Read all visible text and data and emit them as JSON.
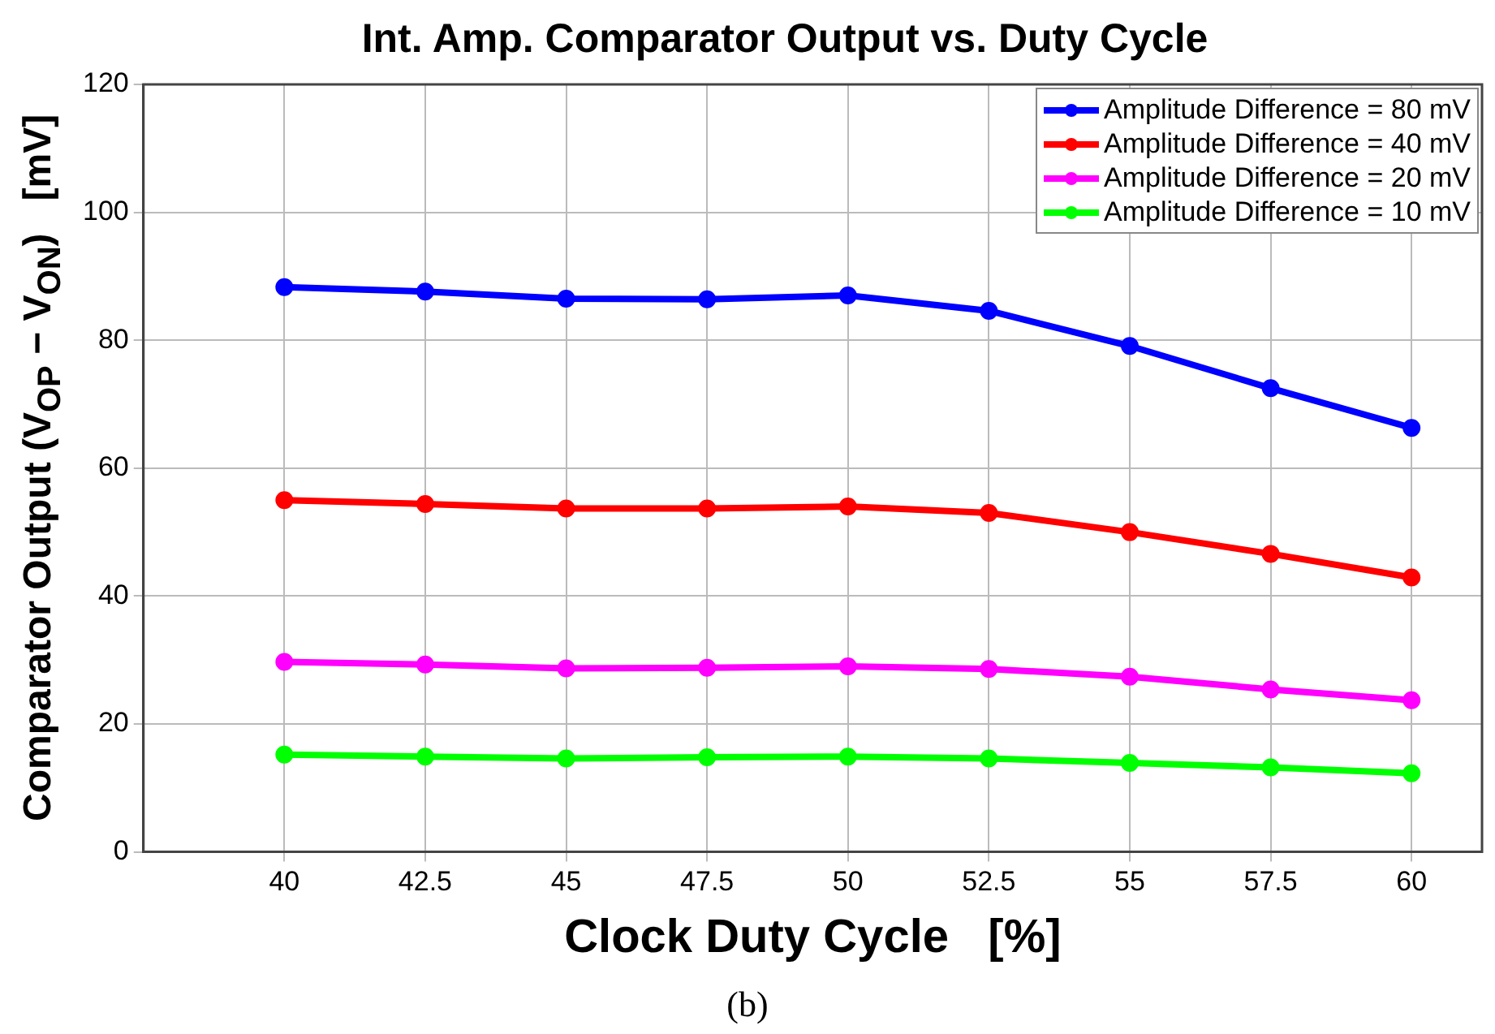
{
  "chart_data": {
    "type": "line",
    "title": "Int. Amp. Comparator Output vs. Duty Cycle",
    "xlabel": "Clock Duty Cycle   [%]",
    "ylabel": "Comparator Output (V$_{OP}$ − V$_{ON}$)   [mV]",
    "x": [
      40,
      42.5,
      45,
      47.5,
      50,
      52.5,
      55,
      57.5,
      60
    ],
    "series": [
      {
        "name": "Amplitude Difference = 80 mV",
        "color": "#0000ff",
        "values": [
          88.3,
          87.6,
          86.5,
          86.4,
          87.0,
          84.6,
          79.1,
          72.5,
          66.3
        ]
      },
      {
        "name": "Amplitude Difference = 40 mV",
        "color": "#ff0000",
        "values": [
          55.0,
          54.4,
          53.7,
          53.7,
          54.0,
          53.0,
          50.0,
          46.6,
          42.9
        ]
      },
      {
        "name": "Amplitude Difference = 20 mV",
        "color": "#ff00ff",
        "values": [
          29.7,
          29.3,
          28.7,
          28.8,
          29.0,
          28.6,
          27.4,
          25.4,
          23.7
        ]
      },
      {
        "name": "Amplitude Difference = 10 mV",
        "color": "#00ff00",
        "values": [
          15.2,
          14.9,
          14.6,
          14.8,
          14.9,
          14.6,
          13.9,
          13.2,
          12.3
        ]
      }
    ],
    "xlim": [
      37.5,
      61.25
    ],
    "xticks": [
      40,
      42.5,
      45,
      47.5,
      50,
      52.5,
      55,
      57.5,
      60
    ],
    "ylim": [
      0,
      120
    ],
    "yticks": [
      0,
      20,
      40,
      60,
      80,
      100,
      120
    ],
    "grid": true,
    "legend": "top right",
    "marker": "circle",
    "line_style": "solid",
    "annotations": [
      "(b)"
    ]
  }
}
